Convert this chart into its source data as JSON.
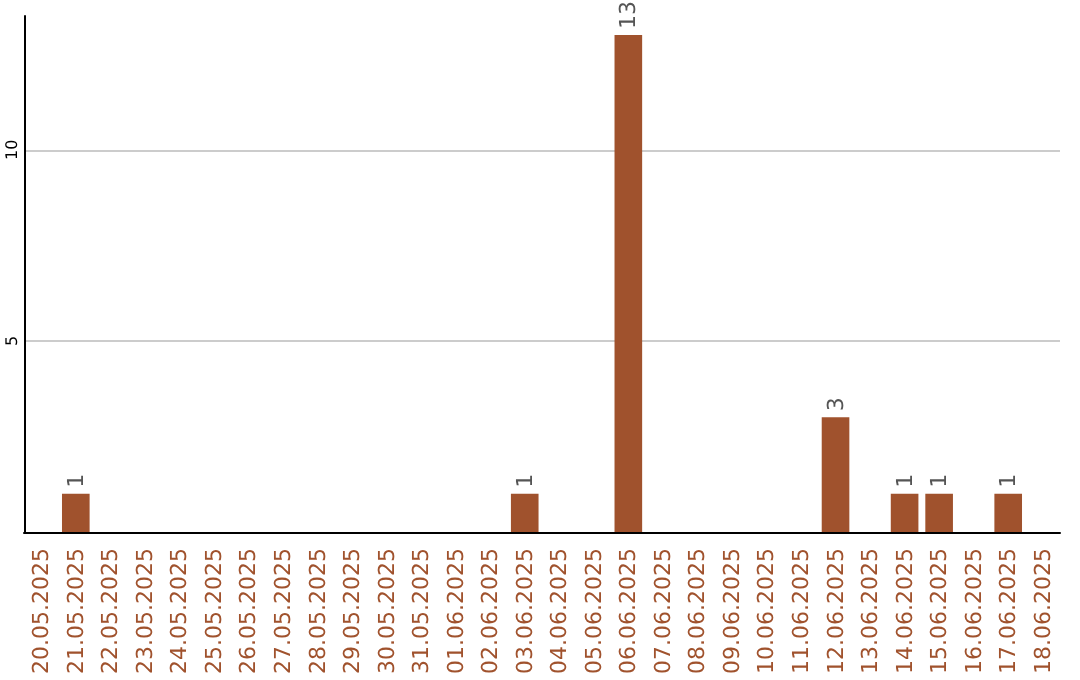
{
  "chart_data": {
    "type": "bar",
    "categories": [
      "20.05.2025",
      "21.05.2025",
      "22.05.2025",
      "23.05.2025",
      "24.05.2025",
      "25.05.2025",
      "26.05.2025",
      "27.05.2025",
      "28.05.2025",
      "29.05.2025",
      "30.05.2025",
      "31.05.2025",
      "01.06.2025",
      "02.06.2025",
      "03.06.2025",
      "04.06.2025",
      "05.06.2025",
      "06.06.2025",
      "07.06.2025",
      "08.06.2025",
      "09.06.2025",
      "10.06.2025",
      "11.06.2025",
      "12.06.2025",
      "13.06.2025",
      "14.06.2025",
      "15.06.2025",
      "16.06.2025",
      "17.06.2025",
      "18.06.2025"
    ],
    "values": [
      0,
      1,
      0,
      0,
      0,
      0,
      0,
      0,
      0,
      0,
      0,
      0,
      0,
      0,
      1,
      0,
      0,
      13,
      0,
      0,
      0,
      0,
      0,
      3,
      0,
      1,
      1,
      0,
      1,
      0
    ],
    "value_labels": [
      null,
      "1",
      null,
      null,
      null,
      null,
      null,
      null,
      null,
      null,
      null,
      null,
      null,
      null,
      "1",
      null,
      null,
      "13",
      null,
      null,
      null,
      null,
      null,
      "3",
      null,
      "1",
      "1",
      null,
      "1",
      null
    ],
    "color": "#a0522d",
    "ylim": [
      0,
      13.5
    ],
    "yticks": [
      5,
      10
    ],
    "grid": "y"
  }
}
